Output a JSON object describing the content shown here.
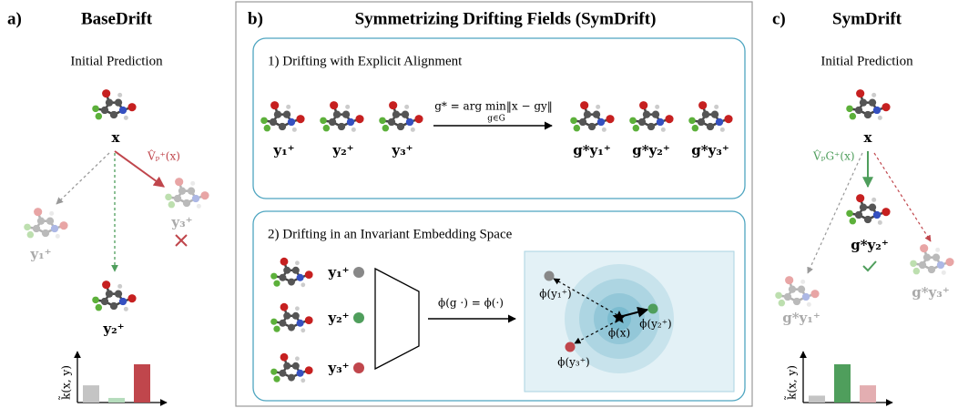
{
  "panel_a": {
    "label": "a)",
    "title": "BaseDrift",
    "subtitle": "Initial Prediction",
    "x_label": "x",
    "field_label": "V̂ₚ⁺(x)",
    "y1_label": "y₁⁺",
    "y2_label": "y₂⁺",
    "y3_label": "y₃⁺",
    "kernel_label": "k̃(x, y)",
    "bars": [
      {
        "color": "#c4c4c4",
        "value": 0.45
      },
      {
        "color": "#b5dcbc",
        "value": 0.12
      },
      {
        "color": "#c0464c",
        "value": 1.0
      }
    ]
  },
  "panel_b": {
    "label": "b)",
    "title": "Symmetrizing Drifting Fields (SymDrift)",
    "step1": {
      "title": "1) Drifting with Explicit Alignment",
      "equation": "g* = arg min‖x − gy‖",
      "equation_sub": "g∈G",
      "inputs": [
        "y₁⁺",
        "y₂⁺",
        "y₃⁺"
      ],
      "outputs": [
        "g*y₁⁺",
        "g*y₂⁺",
        "g*y₃⁺"
      ]
    },
    "step2": {
      "title": "2) Drifting in an Invariant Embedding Space",
      "inputs": [
        "y₁⁺",
        "y₂⁺",
        "y₃⁺"
      ],
      "invariance": "ϕ(g ·) = ϕ(·)",
      "embed_x": "ϕ(x)",
      "embeds": [
        "ϕ(y₁⁺)",
        "ϕ(y₂⁺)",
        "ϕ(y₃⁺)"
      ]
    }
  },
  "panel_c": {
    "label": "c)",
    "title": "SymDrift",
    "subtitle": "Initial Prediction",
    "x_label": "x",
    "field_label": "V̂ₚG⁺(x)",
    "y1_label": "g*y₁⁺",
    "y2_label": "g*y₂⁺",
    "y3_label": "g*y₃⁺",
    "kernel_label": "k̃(x, y)",
    "bars": [
      {
        "color": "#c4c4c4",
        "value": 0.18
      },
      {
        "color": "#4f9e5c",
        "value": 1.0
      },
      {
        "color": "#e3aeb1",
        "value": 0.45
      }
    ]
  }
}
